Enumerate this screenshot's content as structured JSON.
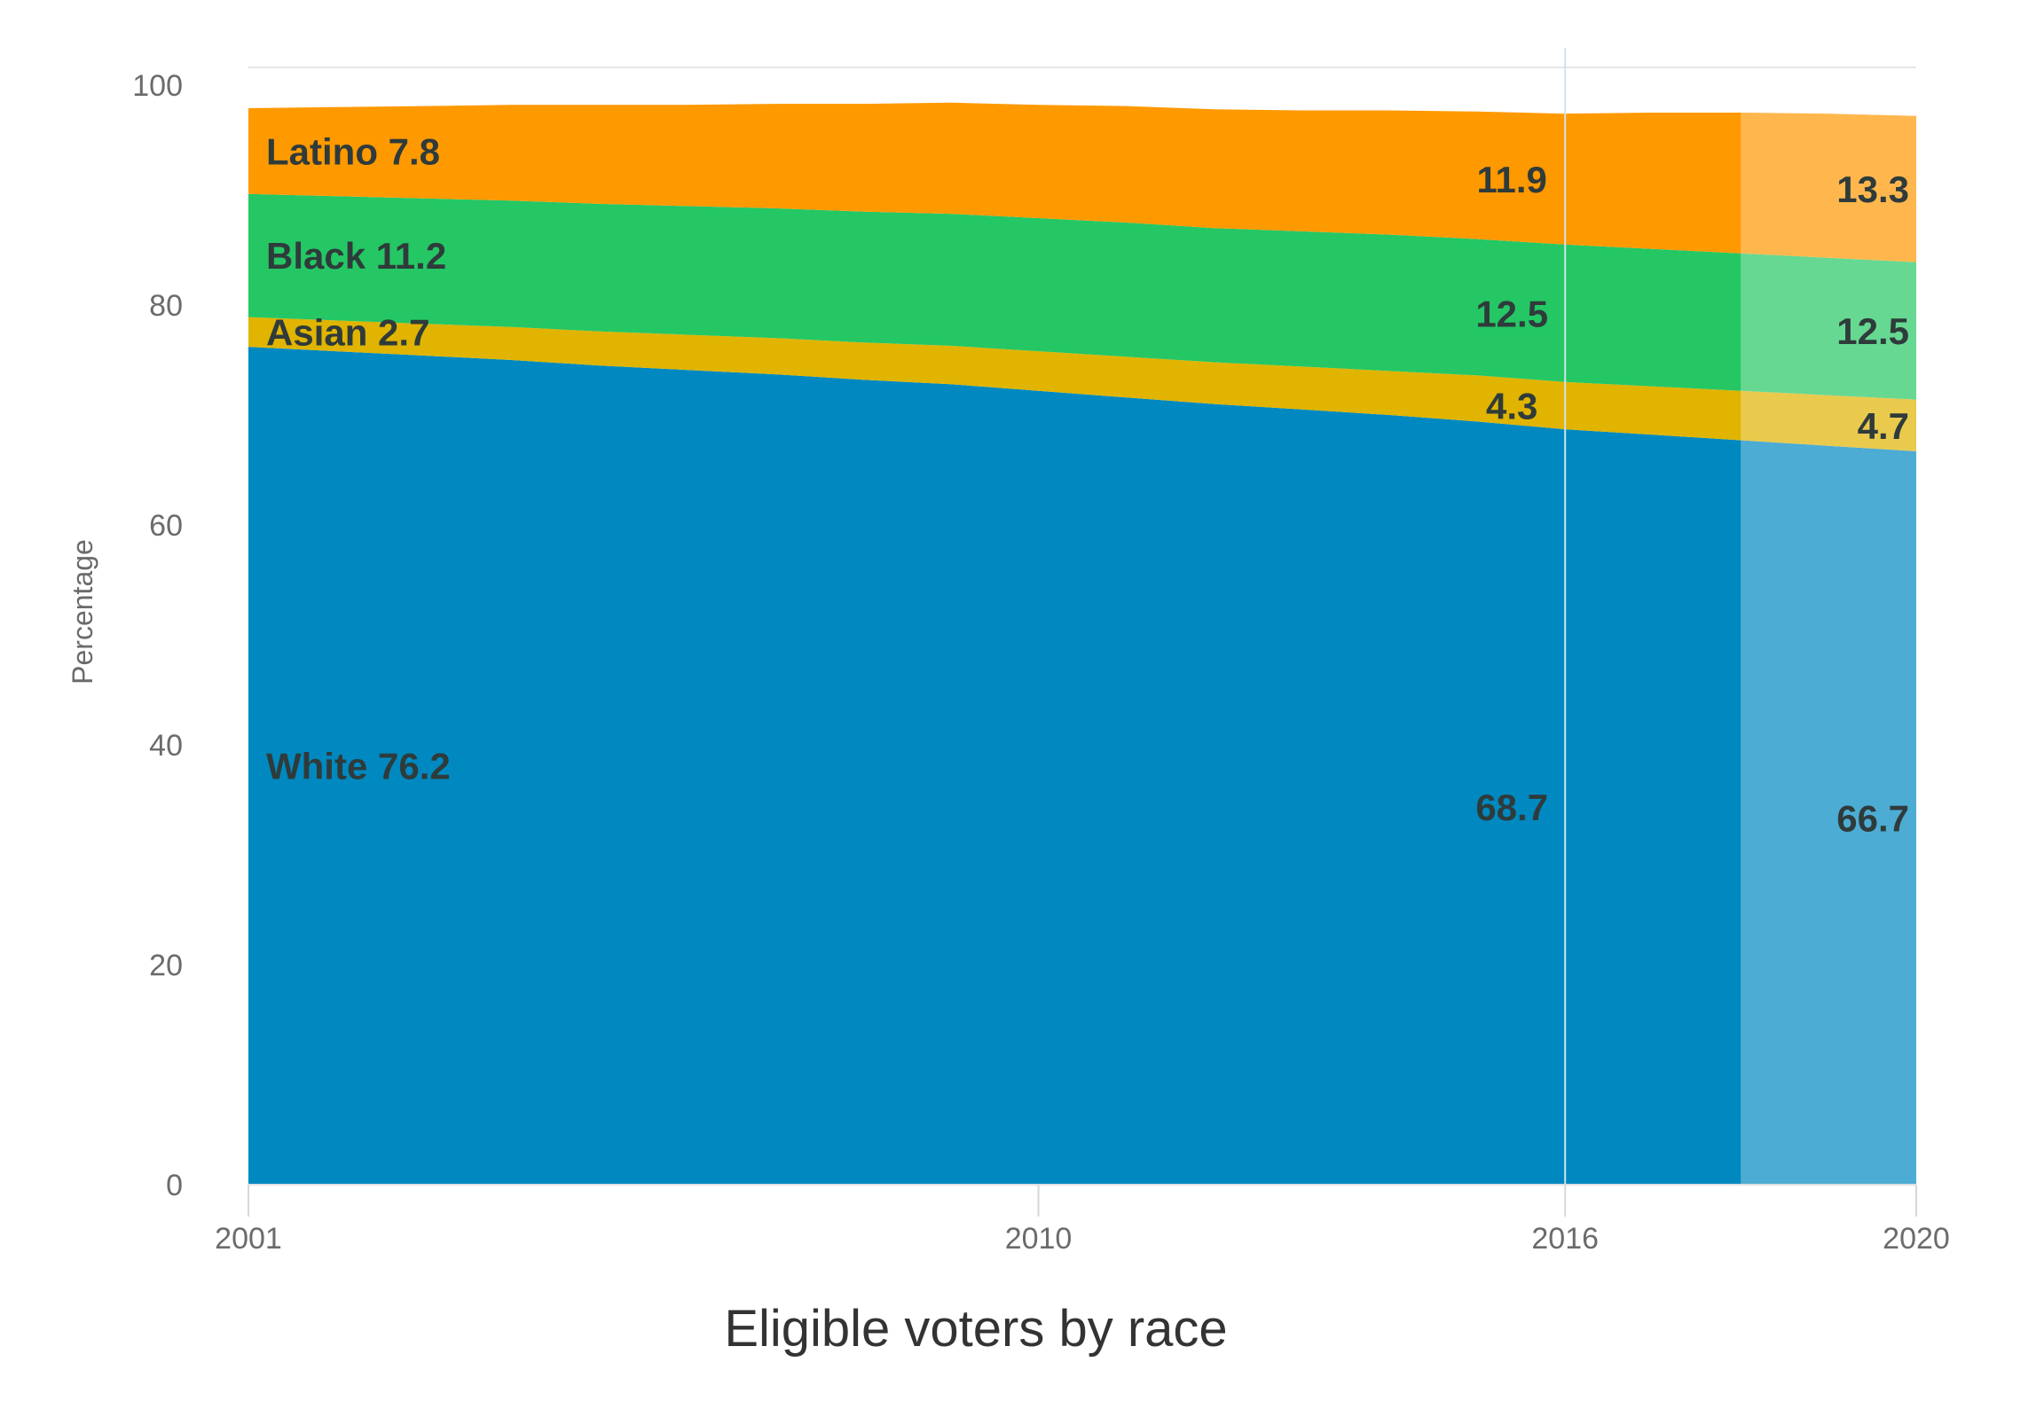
{
  "chart_data": {
    "type": "area",
    "stacked": true,
    "title": "Eligible voters by race",
    "ylabel": "Percentage",
    "xlabel": "",
    "ylim": [
      0,
      100
    ],
    "xlim": [
      2001,
      2020
    ],
    "y_ticks": [
      0,
      20,
      40,
      60,
      80,
      100
    ],
    "x_ticks": [
      "2001",
      "2010",
      "2016",
      "2020"
    ],
    "grid": false,
    "projection_start": 2018,
    "reference_line": 2016,
    "x": [
      2001,
      2002,
      2003,
      2004,
      2005,
      2006,
      2007,
      2008,
      2009,
      2010,
      2011,
      2012,
      2013,
      2014,
      2015,
      2016,
      2017,
      2018,
      2019,
      2020
    ],
    "series": [
      {
        "name": "White",
        "color": "#0089c0",
        "values": [
          76.2,
          75.8,
          75.4,
          75.0,
          74.5,
          74.1,
          73.7,
          73.2,
          72.8,
          72.2,
          71.6,
          71.0,
          70.5,
          70.0,
          69.4,
          68.7,
          68.2,
          67.7,
          67.2,
          66.7
        ]
      },
      {
        "name": "Asian",
        "color": "#e0b400",
        "values": [
          2.7,
          2.8,
          2.9,
          3.0,
          3.1,
          3.2,
          3.3,
          3.4,
          3.5,
          3.6,
          3.7,
          3.8,
          3.9,
          4.0,
          4.2,
          4.3,
          4.4,
          4.5,
          4.6,
          4.7
        ]
      },
      {
        "name": "Black",
        "color": "#24c764",
        "values": [
          11.2,
          11.3,
          11.4,
          11.5,
          11.6,
          11.7,
          11.8,
          11.9,
          12.0,
          12.1,
          12.2,
          12.2,
          12.3,
          12.4,
          12.4,
          12.5,
          12.5,
          12.5,
          12.5,
          12.5
        ]
      },
      {
        "name": "Latino",
        "color": "#ff9900",
        "values": [
          7.8,
          8.1,
          8.4,
          8.7,
          9.0,
          9.2,
          9.5,
          9.8,
          10.1,
          10.3,
          10.6,
          10.8,
          11.0,
          11.3,
          11.6,
          11.9,
          12.4,
          12.8,
          13.1,
          13.3
        ]
      }
    ],
    "annotations": [
      {
        "series": "Latino",
        "text": "Latino 7.8",
        "year": 2001
      },
      {
        "series": "Black",
        "text": "Black 11.2",
        "year": 2001
      },
      {
        "series": "Asian",
        "text": "Asian 2.7",
        "year": 2001
      },
      {
        "series": "White",
        "text": "White 76.2",
        "year": 2001
      },
      {
        "series": "Latino",
        "text": "11.9",
        "year": 2016
      },
      {
        "series": "Black",
        "text": "12.5",
        "year": 2016
      },
      {
        "series": "Asian",
        "text": "4.3",
        "year": 2016
      },
      {
        "series": "White",
        "text": "68.7",
        "year": 2016
      },
      {
        "series": "Latino",
        "text": "13.3",
        "year": 2020
      },
      {
        "series": "Black",
        "text": "12.5",
        "year": 2020
      },
      {
        "series": "Asian",
        "text": "4.7",
        "year": 2020
      },
      {
        "series": "White",
        "text": "66.7",
        "year": 2020
      }
    ]
  }
}
